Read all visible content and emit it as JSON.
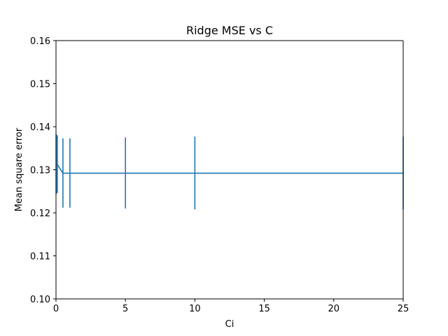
{
  "chart_data": {
    "type": "line",
    "title": "Ridge MSE vs C",
    "xlabel": "Ci",
    "ylabel": "Mean square error",
    "xlim": [
      0,
      25
    ],
    "ylim": [
      0.1,
      0.16
    ],
    "grid": false,
    "xticks": [
      0,
      5,
      10,
      15,
      20,
      25
    ],
    "xtick_labels": [
      "0",
      "5",
      "10",
      "15",
      "20",
      "25"
    ],
    "yticks": [
      0.1,
      0.11,
      0.12,
      0.13,
      0.14,
      0.15,
      0.16
    ],
    "ytick_labels": [
      "0.10",
      "0.11",
      "0.12",
      "0.13",
      "0.14",
      "0.15",
      "0.16"
    ],
    "series": [
      {
        "color": "#1f77b4",
        "x": [
          0.01,
          0.1,
          0.5,
          1,
          5,
          10,
          25
        ],
        "y": [
          0.1313,
          0.1312,
          0.1292,
          0.1292,
          0.1292,
          0.1292,
          0.1292
        ],
        "yerr_low": [
          0.1243,
          0.1246,
          0.1212,
          0.1212,
          0.121,
          0.1208,
          0.1208
        ],
        "yerr_high": [
          0.1383,
          0.138,
          0.1373,
          0.1373,
          0.1375,
          0.1377,
          0.1377
        ]
      }
    ]
  }
}
